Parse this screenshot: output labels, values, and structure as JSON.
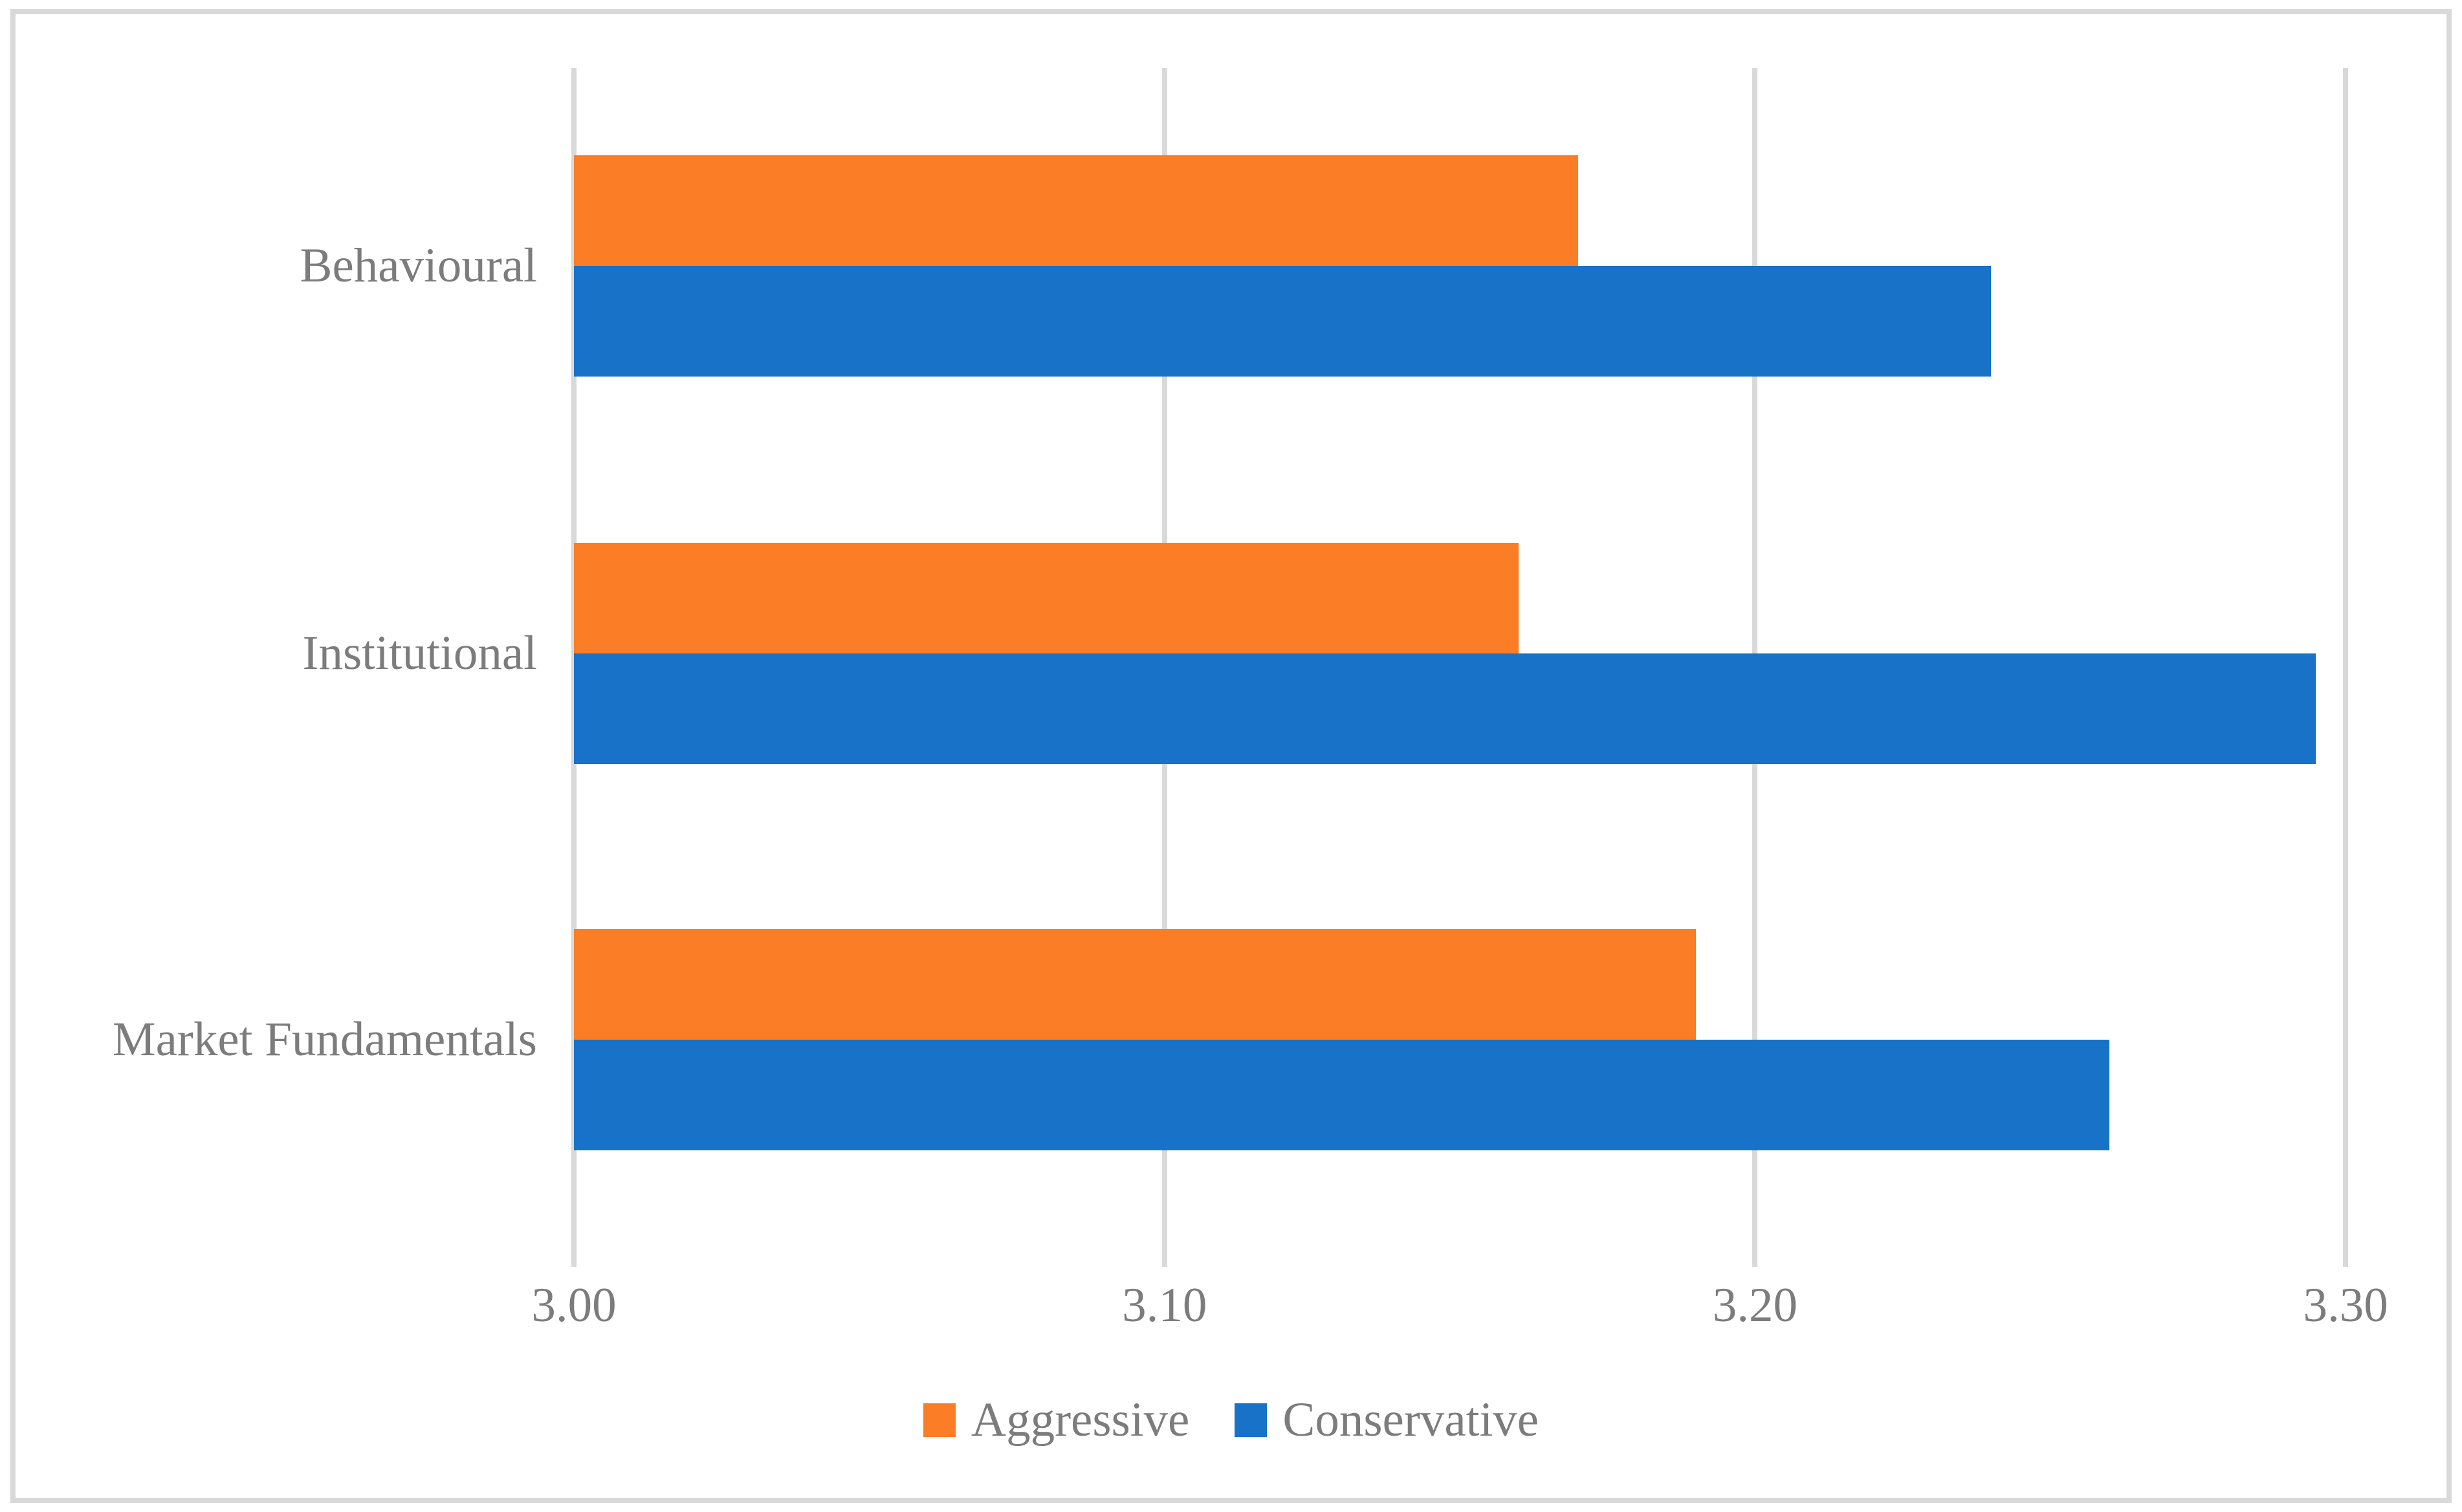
{
  "chart_data": {
    "type": "bar",
    "orientation": "horizontal",
    "title": "",
    "xlabel": "",
    "ylabel": "",
    "categories": [
      "Behavioural",
      "Institutional",
      "Market Fundamentals"
    ],
    "series": [
      {
        "name": "Aggressive",
        "color": "#FB7D26",
        "values": [
          3.17,
          3.16,
          3.19
        ]
      },
      {
        "name": "Conservative",
        "color": "#1772C8",
        "values": [
          3.24,
          3.295,
          3.26
        ]
      }
    ],
    "x_axis": {
      "min": 3.0,
      "max": 3.3,
      "tick_step": 0.1,
      "tick_labels": [
        "3.00",
        "3.10",
        "3.20",
        "3.30"
      ]
    },
    "grid": "vertical-gridlines-on",
    "legend_position": "bottom-center",
    "colors": {
      "gridline": "#D9D9D9",
      "frame_border": "#D9D9D9",
      "text": "#7C7C7C",
      "background": "#FFFFFF"
    }
  }
}
